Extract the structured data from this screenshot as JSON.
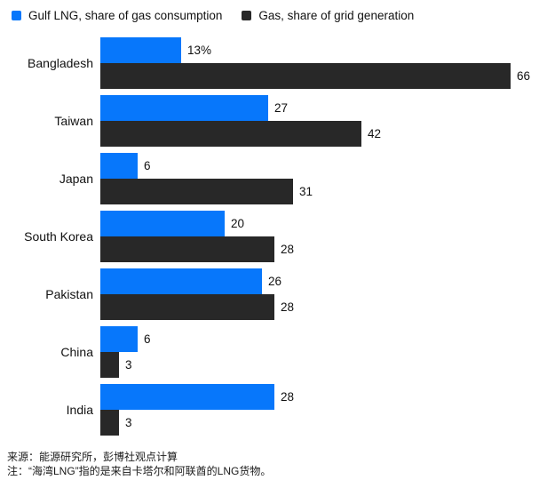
{
  "legend": [
    {
      "label": "Gulf LNG, share of gas consumption",
      "color": "#0777fb"
    },
    {
      "label": "Gas, share of grid generation",
      "color": "#282828"
    }
  ],
  "chart_data": {
    "type": "bar",
    "orientation": "horizontal",
    "title": "",
    "xlabel": "",
    "ylabel": "",
    "x_range": [
      0,
      66
    ],
    "grid": false,
    "legend_position": "top",
    "categories": [
      "Bangladesh",
      "Taiwan",
      "Japan",
      "South Korea",
      "Pakistan",
      "China",
      "India"
    ],
    "series": [
      {
        "name": "Gulf LNG, share of gas consumption",
        "color": "#0777fb",
        "values": [
          13,
          27,
          6,
          20,
          26,
          6,
          28
        ],
        "labels": [
          "13%",
          "27",
          "6",
          "20",
          "26",
          "6",
          "28"
        ]
      },
      {
        "name": "Gas, share of grid generation",
        "color": "#282828",
        "values": [
          66,
          42,
          31,
          28,
          28,
          3,
          3
        ],
        "labels": [
          "66",
          "42",
          "31",
          "28",
          "28",
          "3",
          "3"
        ]
      }
    ]
  },
  "footer": {
    "source": "来源：能源研究所，彭博社观点计算",
    "note": "注：“海湾LNG”指的是来自卡塔尔和阿联酋的LNG货物。"
  }
}
